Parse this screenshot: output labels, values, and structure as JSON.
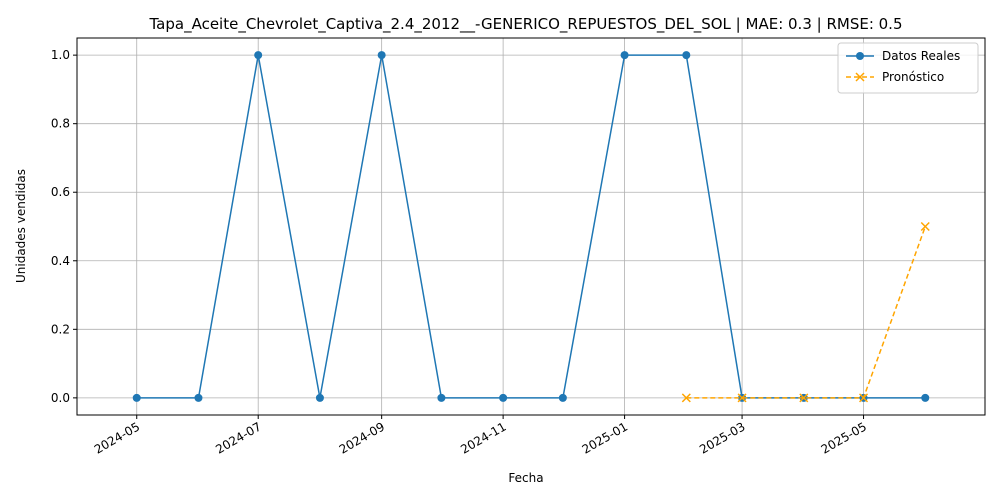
{
  "chart_data": {
    "type": "line",
    "title": "Tapa_Aceite_Chevrolet_Captiva_2.4_2012__-GENERICO_REPUESTOS_DEL_SOL | MAE: 0.3 | RMSE: 0.5",
    "xlabel": "Fecha",
    "ylabel": "Unidades vendidas",
    "x_tick_labels": [
      "2024-05",
      "2024-07",
      "2024-09",
      "2024-11",
      "2025-01",
      "2025-03",
      "2025-05"
    ],
    "y_tick_labels": [
      "0.0",
      "0.2",
      "0.4",
      "0.6",
      "0.8",
      "1.0"
    ],
    "ylim": [
      -0.05,
      1.05
    ],
    "xlim": [
      "2024-04-01",
      "2025-07-01"
    ],
    "grid": true,
    "legend_position": "top-right",
    "series": [
      {
        "name": "Datos Reales",
        "color": "#1f77b4",
        "line_style": "solid",
        "marker": "circle",
        "x": [
          "2024-05-01",
          "2024-06-01",
          "2024-07-01",
          "2024-08-01",
          "2024-09-01",
          "2024-10-01",
          "2024-11-01",
          "2024-12-01",
          "2025-01-01",
          "2025-02-01",
          "2025-03-01",
          "2025-04-01",
          "2025-05-01",
          "2025-06-01"
        ],
        "values": [
          0,
          0,
          1,
          0,
          1,
          0,
          0,
          0,
          1,
          1,
          0,
          0,
          0,
          0
        ]
      },
      {
        "name": "Pronóstico",
        "color": "#ffa500",
        "line_style": "dashed",
        "marker": "x",
        "x": [
          "2025-02-01",
          "2025-03-01",
          "2025-04-01",
          "2025-05-01",
          "2025-06-01"
        ],
        "values": [
          0,
          0,
          0,
          0,
          0.5
        ]
      }
    ]
  }
}
